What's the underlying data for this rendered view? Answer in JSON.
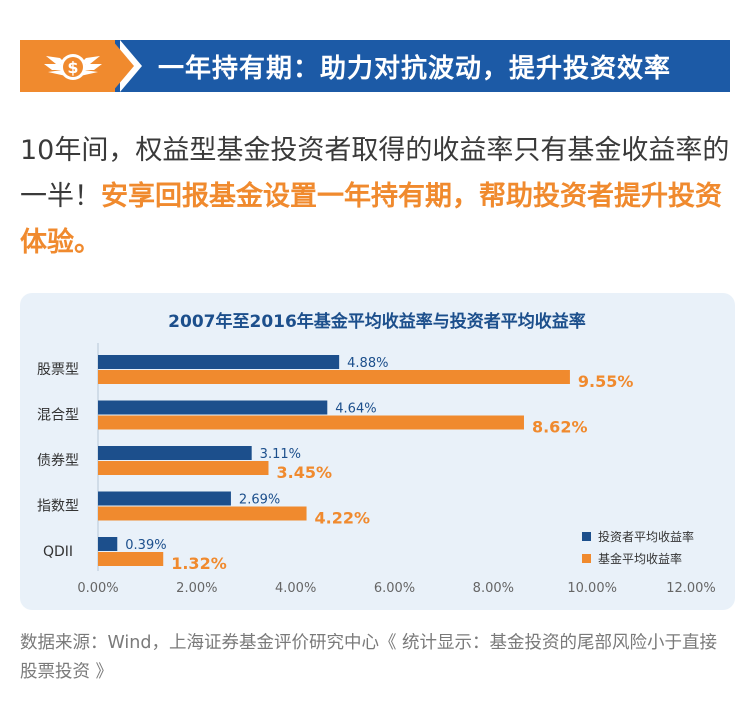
{
  "banner": {
    "title": "一年持有期：助力对抗波动，提升投资效率",
    "icon": "winged-coin-icon",
    "colors": {
      "orange": "#f08a2e",
      "blue": "#1c5aa6"
    }
  },
  "intro": {
    "plain": "10年间，权益型基金投资者取得的收益率只有基金收益率的一半！",
    "highlight": "安享回报基金设置一年持有期，帮助投资者提升投资体验。"
  },
  "footer": {
    "text": "数据来源：Wind，上海证券基金评价研究中心《 统计显示：基金投资的尾部风险小于直接股票投资 》"
  },
  "chart_data": {
    "type": "bar",
    "orientation": "horizontal",
    "title": "2007年至2016年基金平均收益率与投资者平均收益率",
    "categories": [
      "股票型",
      "混合型",
      "债券型",
      "指数型",
      "QDII"
    ],
    "series": [
      {
        "name": "投资者平均收益率",
        "color": "#1c4f8c",
        "values": [
          4.88,
          4.64,
          3.11,
          2.69,
          0.39
        ],
        "labels": [
          "4.88%",
          "4.64%",
          "3.11%",
          "2.69%",
          "0.39%"
        ]
      },
      {
        "name": "基金平均收益率",
        "color": "#f08a2e",
        "values": [
          9.55,
          8.62,
          3.45,
          4.22,
          1.32
        ],
        "labels": [
          "9.55%",
          "8.62%",
          "3.45%",
          "4.22%",
          "1.32%"
        ]
      }
    ],
    "xlim": [
      0,
      12
    ],
    "xticks": [
      "0.00%",
      "2.00%",
      "4.00%",
      "6.00%",
      "8.00%",
      "10.00%",
      "12.00%"
    ],
    "legend_position": "bottom-right",
    "grid": false
  }
}
